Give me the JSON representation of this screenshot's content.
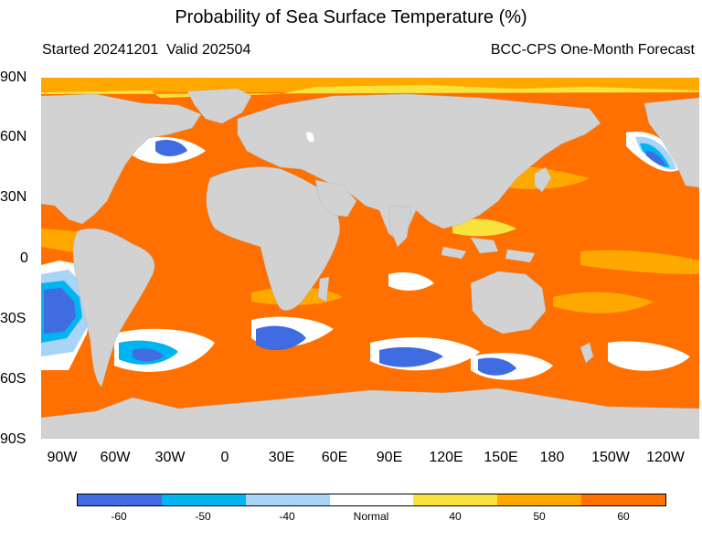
{
  "title": "Probability of Sea Surface Temperature (%)",
  "subtitle_left": "Started 20241201  Valid 202504",
  "subtitle_right": "BCC-CPS One-Month Forecast",
  "lat_labels": [
    "90N",
    "60N",
    "30N",
    "0",
    "30S",
    "60S",
    "90S"
  ],
  "lon_labels": [
    "90W",
    "60W",
    "30W",
    "0",
    "30E",
    "60E",
    "90E",
    "120E",
    "150E",
    "180",
    "150W",
    "120W"
  ],
  "legend": {
    "labels": [
      "-60",
      "-50",
      "-40",
      "Normal",
      "40",
      "50",
      "60"
    ],
    "colors": [
      "#3f6ce0",
      "#00b4f0",
      "#a8d4f8",
      "#ffffff",
      "#f8e23c",
      "#ffa800",
      "#ff7000"
    ]
  },
  "map_colors": {
    "land": "#d2d2d2",
    "ocean_default": "#ff7000"
  }
}
